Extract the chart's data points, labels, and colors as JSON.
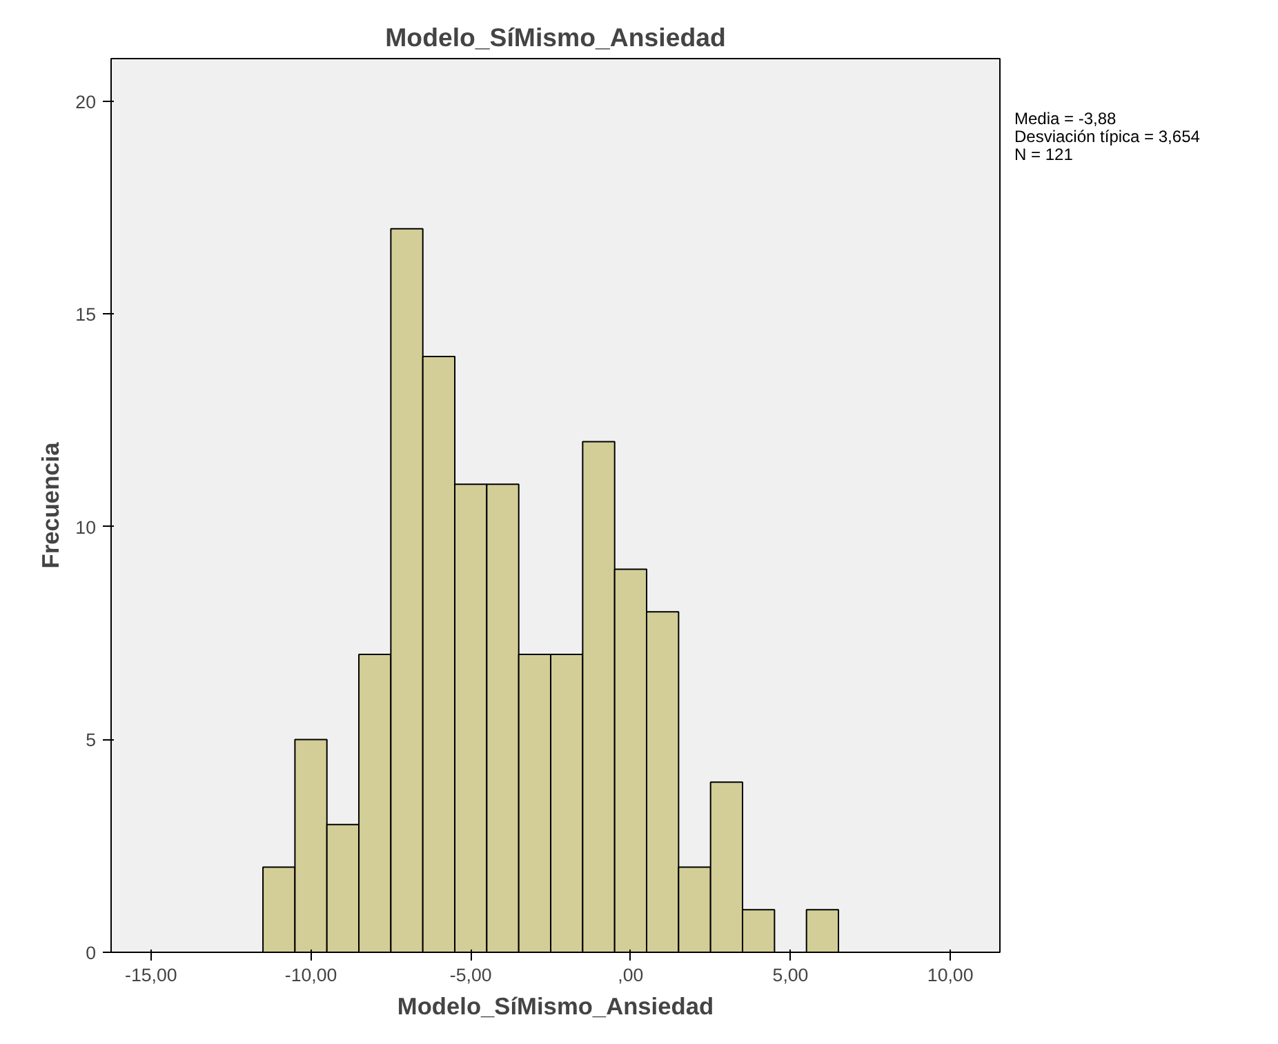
{
  "chart_data": {
    "type": "histogram",
    "title": "Modelo_SíMismo_Ansiedad",
    "xlabel": "Modelo_SíMismo_Ansiedad",
    "ylabel": "Frecuencia",
    "bins": [
      -11.5,
      -10.5,
      -9.5,
      -8.5,
      -7.5,
      -6.5,
      -5.5,
      -4.5,
      -3.5,
      -2.5,
      -1.5,
      -0.5,
      0.5,
      1.5,
      2.5,
      3.5,
      4.5,
      5.5,
      6.5
    ],
    "values": [
      2,
      5,
      3,
      7,
      17,
      14,
      11,
      11,
      7,
      7,
      12,
      9,
      8,
      2,
      4,
      1,
      0,
      1
    ],
    "color": "#d3ce97",
    "xlim": [
      -16.25,
      11.55
    ],
    "xticks": [
      {
        "value": -15,
        "label": "-15,00"
      },
      {
        "value": -10,
        "label": "-10,00"
      },
      {
        "value": -5,
        "label": "-5,00"
      },
      {
        "value": 0,
        "label": ",00"
      },
      {
        "value": 5,
        "label": "5,00"
      },
      {
        "value": 10,
        "label": "10,00"
      }
    ],
    "ylim": [
      0,
      21
    ],
    "yticks": [
      0,
      5,
      10,
      15,
      20
    ],
    "grid": false,
    "annotations": [
      "Media = -3,88",
      "Desviación típica = 3,654",
      "N = 121"
    ]
  }
}
